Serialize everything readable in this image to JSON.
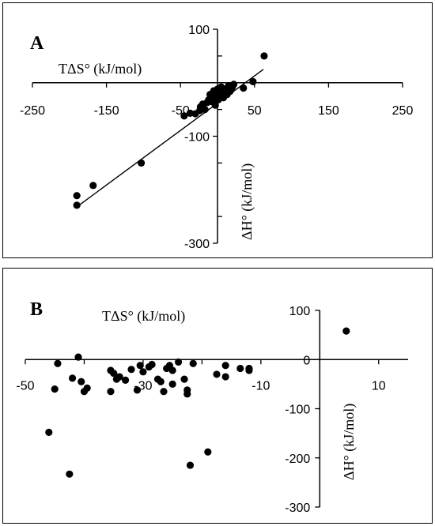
{
  "chart_data": [
    {
      "type": "scatter",
      "panel_label": "A",
      "xlabel": "TΔS° (kJ/mol)",
      "ylabel": "ΔH° (kJ/mol)",
      "xlim": [
        -250,
        250
      ],
      "ylim": [
        -300,
        100
      ],
      "x_ticks": [
        "-250",
        "-150",
        "-50",
        "50",
        "150",
        "250"
      ],
      "y_ticks": [
        "100",
        "-100",
        "-300"
      ],
      "trendline": {
        "from": [
          -188,
          -230
        ],
        "to": [
          62,
          25
        ]
      },
      "points": [
        [
          -190,
          -211
        ],
        [
          -190,
          -229
        ],
        [
          -168,
          -192
        ],
        [
          -103,
          -150
        ],
        [
          -45,
          -62
        ],
        [
          -37,
          -57
        ],
        [
          -30,
          -58
        ],
        [
          -24,
          -52
        ],
        [
          -23,
          -45
        ],
        [
          -20,
          -40
        ],
        [
          -17,
          -50
        ],
        [
          -14,
          -37
        ],
        [
          -12,
          -32
        ],
        [
          -10,
          -22
        ],
        [
          -8,
          -35
        ],
        [
          -6,
          -28
        ],
        [
          -5,
          -15
        ],
        [
          -3,
          -42
        ],
        [
          -2,
          -25
        ],
        [
          0,
          -12
        ],
        [
          1,
          -32
        ],
        [
          2,
          -18
        ],
        [
          4,
          -26
        ],
        [
          5,
          -8
        ],
        [
          6,
          -20
        ],
        [
          8,
          -28
        ],
        [
          10,
          -12
        ],
        [
          12,
          -18
        ],
        [
          13,
          -22
        ],
        [
          15,
          -6
        ],
        [
          17,
          -16
        ],
        [
          18,
          -12
        ],
        [
          20,
          -8
        ],
        [
          22,
          -3
        ],
        [
          35,
          -10
        ],
        [
          48,
          2
        ],
        [
          63,
          50
        ]
      ]
    },
    {
      "type": "scatter",
      "panel_label": "B",
      "xlabel": "TΔS° (kJ/mol)",
      "ylabel": "ΔH° (kJ/mol)",
      "xlim": [
        -50,
        15
      ],
      "ylim": [
        -300,
        100
      ],
      "x_ticks": [
        "-50",
        "-30",
        "-10",
        "10"
      ],
      "y_ticks": [
        "100",
        "0",
        "-100",
        "-200",
        "-300"
      ],
      "points": [
        [
          -46,
          -148
        ],
        [
          -45,
          -60
        ],
        [
          -44.5,
          -8
        ],
        [
          -42.5,
          -233
        ],
        [
          -42,
          -38
        ],
        [
          -41,
          5
        ],
        [
          -40.5,
          -45
        ],
        [
          -40,
          -65
        ],
        [
          -39.5,
          -58
        ],
        [
          -35.5,
          -22
        ],
        [
          -35.5,
          -65
        ],
        [
          -35,
          -28
        ],
        [
          -34.5,
          -40
        ],
        [
          -34,
          -35
        ],
        [
          -33,
          -42
        ],
        [
          -32,
          -20
        ],
        [
          -31,
          -62
        ],
        [
          -30.5,
          -12
        ],
        [
          -30,
          -25
        ],
        [
          -29,
          -15
        ],
        [
          -28.5,
          -10
        ],
        [
          -27.5,
          -40
        ],
        [
          -27,
          -45
        ],
        [
          -26.5,
          -65
        ],
        [
          -26,
          -18
        ],
        [
          -25.5,
          -12
        ],
        [
          -25,
          -50
        ],
        [
          -25,
          -22
        ],
        [
          -24,
          -5
        ],
        [
          -23,
          -40
        ],
        [
          -22.5,
          -70
        ],
        [
          -22.5,
          -62
        ],
        [
          -22,
          -215
        ],
        [
          -21.5,
          -8
        ],
        [
          -19,
          -188
        ],
        [
          -17.5,
          -30
        ],
        [
          -16,
          -35
        ],
        [
          -16,
          -12
        ],
        [
          -13.5,
          -18
        ],
        [
          -12,
          -22
        ],
        [
          -12,
          -18
        ],
        [
          4.5,
          58
        ]
      ]
    }
  ]
}
